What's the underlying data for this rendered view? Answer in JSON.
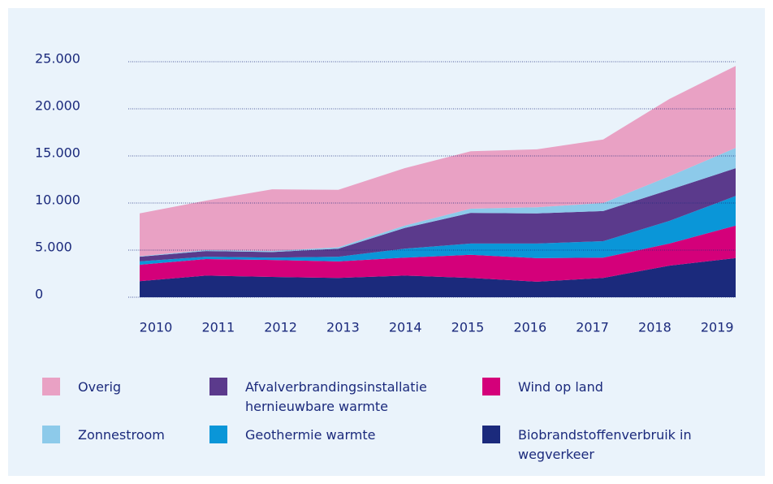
{
  "chart_data": {
    "type": "stacked_area",
    "categories": [
      "2010",
      "2011",
      "2012",
      "2013",
      "2014",
      "2015",
      "2016",
      "2017",
      "2018",
      "2019"
    ],
    "series": [
      {
        "name": "Biobrandstoffenverbruik in wegverkeer",
        "color": "#1b2a7c",
        "values": [
          1700,
          2300,
          2150,
          2050,
          2300,
          2050,
          1650,
          2050,
          3350,
          4150
        ]
      },
      {
        "name": "Wind op land",
        "color": "#d4007a",
        "values": [
          1750,
          1750,
          1800,
          1750,
          1900,
          2450,
          2500,
          2150,
          2350,
          3450
        ]
      },
      {
        "name": "Geothermie warmte",
        "color": "#0a96d8",
        "values": [
          350,
          250,
          250,
          500,
          950,
          1200,
          1550,
          1750,
          2400,
          3150
        ]
      },
      {
        "name": "Afvalverbrandingsinstallatie hernieuwbare warmte",
        "color": "#5b3a8c",
        "values": [
          500,
          600,
          600,
          850,
          2200,
          3250,
          3200,
          3200,
          3300,
          2950
        ]
      },
      {
        "name": "Zonnestroom",
        "color": "#8dcaea",
        "values": [
          50,
          100,
          100,
          150,
          250,
          450,
          650,
          850,
          1450,
          2150
        ]
      },
      {
        "name": "Overig",
        "color": "#e9a1c4",
        "values": [
          4550,
          5250,
          6550,
          6100,
          6100,
          6100,
          6150,
          6750,
          8200,
          8700
        ]
      }
    ],
    "ylim": [
      0,
      25000
    ],
    "yticks": [
      0,
      {
        "value": 5000,
        "label": "5.000"
      },
      {
        "value": 10000,
        "label": "10.000"
      },
      {
        "value": 15000,
        "label": "15.000"
      },
      {
        "value": 20000,
        "label": "20.000"
      },
      {
        "value": 25000,
        "label": "25.000"
      }
    ],
    "grid": true
  }
}
